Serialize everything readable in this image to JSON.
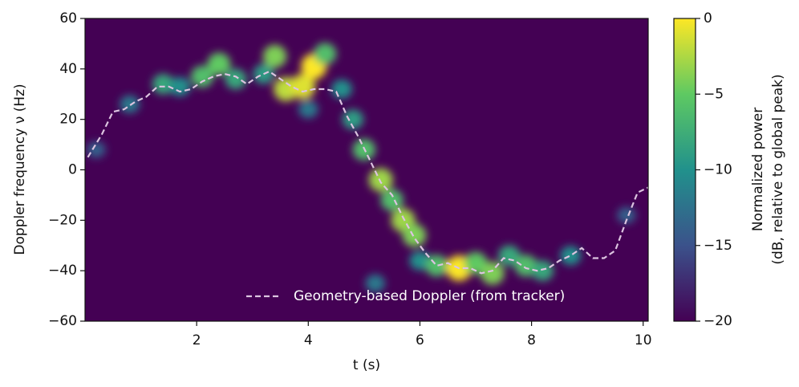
{
  "chart_data": {
    "type": "heatmap",
    "xlabel": "t (s)",
    "ylabel": "Doppler frequency ν (Hz)",
    "xlim": [
      0,
      10.09
    ],
    "xticks": [
      2,
      4,
      6,
      8,
      10
    ],
    "ylim": [
      -60,
      60
    ],
    "yticks": [
      {
        "value": -60,
        "label": "−60"
      },
      {
        "value": -40,
        "label": "−40"
      },
      {
        "value": -20,
        "label": "−20"
      },
      0,
      20,
      40,
      60
    ],
    "background": "#440154",
    "cells": {
      "t": [
        0.2,
        0.8,
        1.4,
        1.7,
        2.1,
        2.4,
        2.7,
        3.2,
        3.4,
        3.6,
        3.9,
        4.1,
        4.3,
        4.0,
        4.6,
        4.8,
        5.0,
        5.3,
        5.5,
        5.7,
        5.9,
        6.0,
        6.3,
        6.7,
        7.0,
        7.3,
        7.6,
        7.9,
        8.2,
        8.7,
        9.7,
        5.2
      ],
      "nu": [
        8,
        26,
        34,
        33,
        37,
        42,
        36,
        38,
        45,
        32,
        33,
        41,
        46,
        24,
        32,
        20,
        8,
        -4,
        -12,
        -20,
        -26,
        -36,
        -38,
        -39,
        -37,
        -41,
        -34,
        -38,
        -40,
        -34,
        -18,
        -45
      ],
      "power": [
        -14,
        -12,
        -8,
        -10,
        -6,
        -5,
        -8,
        -9,
        -4,
        -2,
        -1,
        0,
        -6,
        -12,
        -10,
        -9,
        -6,
        -3,
        -6,
        -3,
        -4,
        -10,
        -6,
        0,
        -5,
        -4,
        -8,
        -6,
        -8,
        -10,
        -14,
        -12
      ]
    },
    "series": [
      {
        "name": "Geometry-based Doppler (from tracker)",
        "color": "#dcc4e0",
        "style": "dashed",
        "x": [
          0.05,
          0.3,
          0.5,
          0.7,
          0.9,
          1.1,
          1.3,
          1.5,
          1.7,
          1.9,
          2.1,
          2.3,
          2.5,
          2.7,
          2.9,
          3.1,
          3.3,
          3.5,
          3.7,
          3.9,
          4.1,
          4.3,
          4.5,
          4.7,
          4.9,
          5.1,
          5.3,
          5.5,
          5.7,
          5.9,
          6.1,
          6.3,
          6.5,
          6.7,
          6.9,
          7.1,
          7.3,
          7.5,
          7.7,
          7.9,
          8.1,
          8.3,
          8.5,
          8.7,
          8.9,
          9.1,
          9.3,
          9.5,
          9.7,
          9.9,
          10.09
        ],
        "values": [
          5,
          14,
          23,
          24,
          27,
          29,
          33,
          33,
          31,
          32,
          35,
          37,
          38,
          37,
          34,
          37,
          39,
          36,
          33,
          31,
          32,
          32,
          31,
          21,
          13,
          4,
          -5,
          -10,
          -19,
          -27,
          -33,
          -38,
          -37,
          -39,
          -39,
          -41,
          -40,
          -35,
          -36,
          -39,
          -40,
          -39,
          -36,
          -34,
          -31,
          -35,
          -35,
          -32,
          -20,
          -9,
          -7
        ]
      }
    ],
    "legend": "lower right",
    "colorbar": {
      "label": [
        "Normalized power",
        "(dB, relative to global peak)"
      ],
      "lim": [
        -20,
        0
      ],
      "ticks": [
        {
          "value": -20,
          "label": "−20"
        },
        {
          "value": -15,
          "label": "−15"
        },
        {
          "value": -10,
          "label": "−10"
        },
        {
          "value": -5,
          "label": "−5"
        },
        0
      ]
    }
  }
}
